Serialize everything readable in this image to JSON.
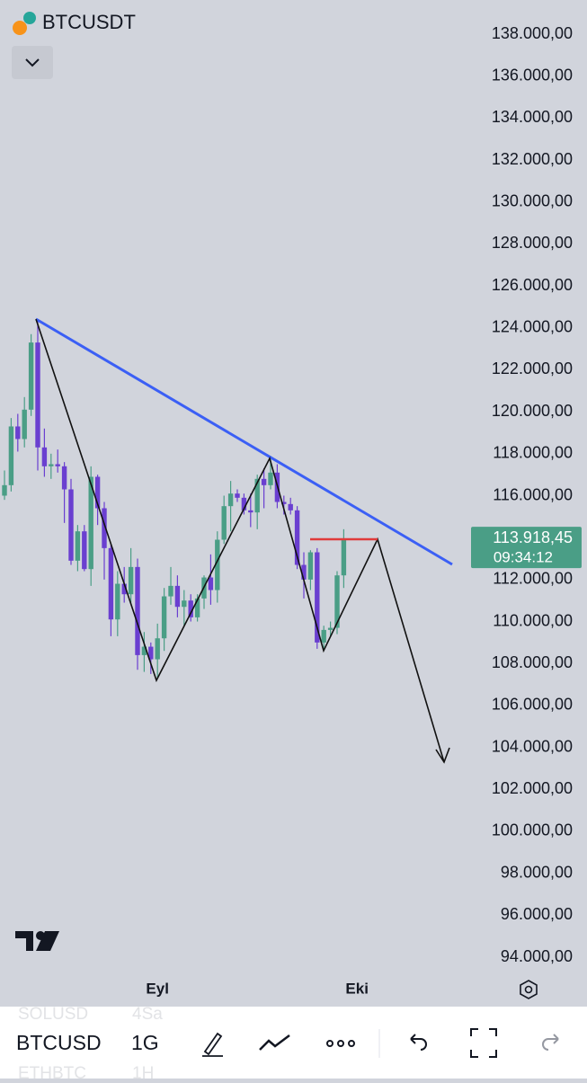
{
  "header": {
    "symbol": "BTCUSDT"
  },
  "chart_data": {
    "type": "candlestick",
    "categories": [
      null,
      null,
      null,
      null,
      null,
      null,
      null,
      null,
      null,
      null,
      null,
      null,
      null,
      null,
      null,
      null,
      null,
      null,
      null,
      null,
      null,
      null,
      null,
      "Eyl",
      null,
      null,
      null,
      null,
      null,
      null,
      null,
      null,
      null,
      null,
      null,
      null,
      null,
      null,
      null,
      null,
      null,
      null,
      null,
      null,
      null,
      null,
      null,
      null,
      null,
      null,
      null,
      null,
      null,
      "Eki"
    ],
    "open": [
      116000,
      116500,
      119300,
      118700,
      120100,
      123300,
      118300,
      117400,
      117500,
      117400,
      116300,
      112900,
      114300,
      112500,
      116900,
      115400,
      113500,
      110100,
      111800,
      111300,
      112600,
      108400,
      108800,
      108200,
      109200,
      111200,
      111700,
      110700,
      111000,
      110200,
      111100,
      112100,
      111500,
      113900,
      115500,
      116100,
      115900,
      115300,
      115200,
      116800,
      116500,
      117100,
      115700,
      115600,
      115300,
      112700,
      112000,
      113300,
      109000,
      109600,
      109700,
      112200,
      null,
      null
    ],
    "high": [
      117200,
      119700,
      119900,
      120700,
      123700,
      124400,
      119200,
      118000,
      118200,
      117600,
      116800,
      114600,
      114600,
      117400,
      117000,
      115700,
      113700,
      112400,
      112600,
      113500,
      113000,
      109500,
      109000,
      109900,
      111600,
      112600,
      112200,
      111500,
      111300,
      111300,
      112200,
      113200,
      114300,
      116000,
      116700,
      116300,
      116100,
      116100,
      117000,
      117300,
      117900,
      117500,
      116000,
      115900,
      115500,
      113300,
      113400,
      113500,
      109800,
      110000,
      112400,
      114400,
      null,
      null
    ],
    "low": [
      115800,
      116200,
      118100,
      118300,
      119800,
      117200,
      116900,
      116800,
      117100,
      114700,
      112700,
      112400,
      112400,
      111700,
      114600,
      112000,
      109300,
      109300,
      110900,
      110900,
      107700,
      107600,
      107500,
      107300,
      108600,
      110800,
      110200,
      109800,
      110000,
      110000,
      110600,
      110800,
      110900,
      113700,
      114300,
      115700,
      115100,
      114500,
      114400,
      115400,
      116300,
      115400,
      115100,
      115100,
      112500,
      111100,
      111500,
      108700,
      108600,
      109300,
      109400,
      111600,
      null,
      null
    ],
    "close": [
      116500,
      119300,
      118700,
      120100,
      123300,
      118300,
      117400,
      117500,
      117400,
      116300,
      112900,
      114300,
      112500,
      116900,
      115400,
      113500,
      110100,
      111800,
      111300,
      112600,
      108400,
      108800,
      108200,
      109200,
      111200,
      111700,
      110700,
      111000,
      110200,
      111100,
      112100,
      111500,
      113900,
      115500,
      116100,
      115900,
      115300,
      115200,
      116800,
      116500,
      117100,
      115700,
      115600,
      115300,
      112700,
      112000,
      113300,
      109000,
      109600,
      109700,
      112200,
      113900,
      null,
      null
    ],
    "up_color": "#4a9e86",
    "down_color": "#6a3fd0",
    "ylim": [
      94000,
      138000
    ],
    "yticks": [
      {
        "value": 94000,
        "label": "94.000,00"
      },
      {
        "value": 96000,
        "label": "96.000,00"
      },
      {
        "value": 98000,
        "label": "98.000,00"
      },
      {
        "value": 100000,
        "label": "100.000,00"
      },
      {
        "value": 102000,
        "label": "102.000,00"
      },
      {
        "value": 104000,
        "label": "104.000,00"
      },
      {
        "value": 106000,
        "label": "106.000,00"
      },
      {
        "value": 108000,
        "label": "108.000,00"
      },
      {
        "value": 110000,
        "label": "110.000,00"
      },
      {
        "value": 112000,
        "label": "112.000,00"
      },
      {
        "value": 114000,
        "label": "114.000,00"
      },
      {
        "value": 116000,
        "label": "116.000,00"
      },
      {
        "value": 118000,
        "label": "118.000,00"
      },
      {
        "value": 120000,
        "label": "120.000,00"
      },
      {
        "value": 122000,
        "label": "122.000,00"
      },
      {
        "value": 124000,
        "label": "124.000,00"
      },
      {
        "value": 126000,
        "label": "126.000,00"
      },
      {
        "value": 128000,
        "label": "128.000,00"
      },
      {
        "value": 130000,
        "label": "130.000,00"
      },
      {
        "value": 132000,
        "label": "132.000,00"
      },
      {
        "value": 134000,
        "label": "134.000,00"
      },
      {
        "value": 136000,
        "label": "136.000,00"
      },
      {
        "value": 138000,
        "label": "138.000,00"
      }
    ],
    "last_price": {
      "value": 113918.45,
      "label": "113.918,45"
    },
    "countdown": "09:34:12"
  },
  "toolbar": {
    "symbols": [
      "SOLUSD",
      "BTCUSD",
      "ETHBTC"
    ],
    "intervals": [
      "4Sa",
      "1G",
      "1H"
    ]
  }
}
